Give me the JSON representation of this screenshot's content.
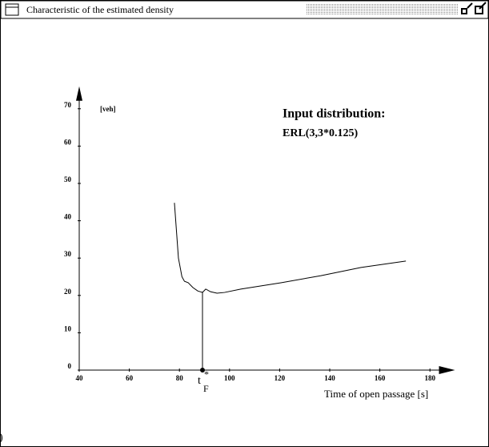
{
  "window": {
    "title": "Characteristic of the estimated density",
    "stray_text": ")"
  },
  "chart_data": {
    "type": "line",
    "annotation_title": "Input distribution:",
    "annotation_text": "ERL(3,3*0.125)",
    "y_label": "[veh]",
    "x_label": "Time of open passage [s]",
    "x": [
      78,
      79.6,
      81,
      82,
      83.5,
      85.4,
      87.3,
      89.2,
      90.5,
      92.4,
      95,
      98,
      104.5,
      120.5,
      136.5,
      152.5,
      170.4
    ],
    "series": [
      {
        "color": "#000000",
        "values": [
          44.8,
          30,
          25,
          23.8,
          23.4,
          22.1,
          21.2,
          20.8,
          21.7,
          21.0,
          20.6,
          20.8,
          21.7,
          23.4,
          25.3,
          27.5,
          29.2
        ]
      }
    ],
    "marker": {
      "x": 89.2,
      "y": 21,
      "label_main": "t",
      "label_sup": "*",
      "label_sub": "F"
    },
    "xlim": [
      40,
      190
    ],
    "ylim": [
      0,
      76
    ],
    "xticks": [
      40,
      60,
      80,
      100,
      120,
      140,
      160,
      180
    ],
    "yticks": [
      0,
      10,
      20,
      30,
      40,
      50,
      60,
      70
    ]
  }
}
